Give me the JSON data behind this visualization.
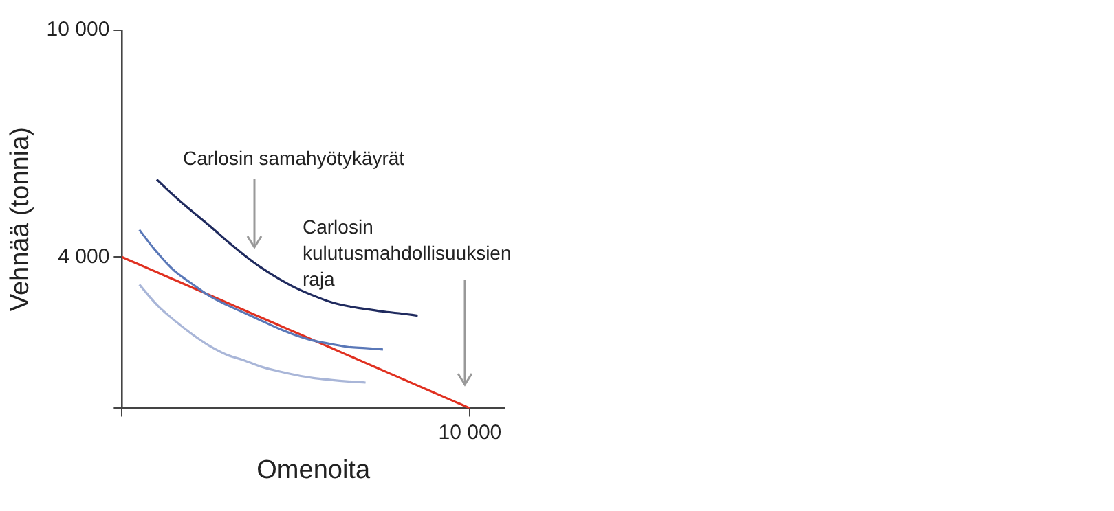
{
  "chart_data": {
    "type": "line",
    "xlabel": "Omenoita",
    "ylabel": "Vehnää (tonnia)",
    "categories": [
      null,
      null,
      null,
      null,
      null,
      null,
      null,
      null,
      null,
      null,
      null,
      null,
      null,
      null,
      null,
      null,
      null,
      null,
      null,
      null,
      "10 000",
      null,
      null
    ],
    "ylim": [
      0,
      10000
    ],
    "yticks": [
      {
        "value": 0,
        "label": null
      },
      {
        "value": 4000,
        "label": "4 000"
      },
      {
        "value": 10000,
        "label": "10 000"
      }
    ],
    "grid": false,
    "legend": false,
    "marker": "none",
    "line_style": "solid",
    "annotations": [
      "Carlosin samahyötykäyrät",
      "Carlosin\nkulutusmahdollisuuksien\nraja"
    ],
    "series": [
      {
        "color": "#1f2a5e",
        "values": [
          null,
          null,
          6050,
          5620,
          5220,
          4840,
          4440,
          4060,
          3720,
          3430,
          3180,
          2980,
          2810,
          2700,
          2625,
          2560,
          2510,
          2450,
          null,
          null,
          null,
          null,
          null
        ]
      },
      {
        "color": "#5a78b8",
        "values": [
          null,
          4720,
          4130,
          3640,
          3300,
          2980,
          2740,
          2530,
          2320,
          2110,
          1930,
          1790,
          1700,
          1620,
          1590,
          1555,
          null,
          null,
          null,
          null,
          null,
          null,
          null
        ]
      },
      {
        "color": "#a9b6d8",
        "values": [
          null,
          3270,
          2740,
          2330,
          1970,
          1660,
          1420,
          1270,
          1100,
          980,
          880,
          800,
          750,
          710,
          680,
          null,
          null,
          null,
          null,
          null,
          null,
          null,
          null
        ]
      },
      {
        "color": "#e03020",
        "values": [
          4000,
          3800,
          3600,
          3400,
          3200,
          3000,
          2800,
          2600,
          2400,
          2200,
          2000,
          1800,
          1600,
          1400,
          1200,
          1000,
          800,
          600,
          400,
          200,
          0,
          null,
          null
        ]
      }
    ]
  }
}
